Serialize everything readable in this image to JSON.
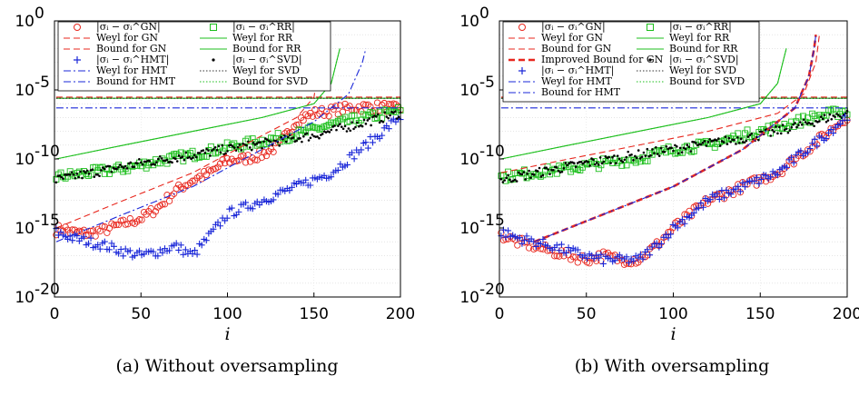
{
  "figure": {
    "captions": [
      "(a) Without oversampling",
      "(b) With oversampling"
    ]
  },
  "chart_data": [
    {
      "type": "scatter",
      "yscale": "log",
      "xlabel": "i",
      "xlim": [
        0,
        200
      ],
      "ylim": [
        1e-20,
        1
      ],
      "xticks": [
        "0",
        "50",
        "100",
        "150",
        "200"
      ],
      "yticks": [
        {
          "m": "10",
          "e": "0"
        },
        {
          "m": "10",
          "e": "-5"
        },
        {
          "m": "10",
          "e": "-10"
        },
        {
          "m": "10",
          "e": "-15"
        },
        {
          "m": "10",
          "e": "-20"
        }
      ],
      "grid": true,
      "legend_position": "top",
      "legend": [
        "|σᵢ − σᵢ^GN|",
        "|σᵢ − σᵢ^RR|",
        "Weyl for GN",
        "Weyl for RR",
        "Bound for GN",
        "Bound for RR",
        "|σᵢ − σᵢ^HMT|",
        "|σᵢ − σᵢ^SVD|",
        "Weyl for HMT",
        "Weyl for SVD",
        "Bound for HMT",
        "Bound for SVD"
      ],
      "series": [
        {
          "name": "|σᵢ − σᵢ^GN|",
          "kind": "markers",
          "marker": "circle",
          "color": "#e8271e",
          "points": [
            [
              1,
              7e-16
            ],
            [
              5,
              1e-15
            ],
            [
              10,
              5e-16
            ],
            [
              20,
              4e-16
            ],
            [
              30,
              8e-16
            ],
            [
              40,
              2e-15
            ],
            [
              50,
              5e-15
            ],
            [
              60,
              3e-14
            ],
            [
              70,
              5e-13
            ],
            [
              80,
              3e-12
            ],
            [
              90,
              1e-11
            ],
            [
              100,
              8e-11
            ],
            [
              110,
              1e-10
            ],
            [
              120,
              2e-10
            ],
            [
              130,
              1e-09
            ],
            [
              140,
              6e-08
            ],
            [
              150,
              2e-07
            ],
            [
              160,
              3e-07
            ],
            [
              170,
              5e-07
            ],
            [
              180,
              6e-07
            ],
            [
              190,
              6e-07
            ],
            [
              199,
              4e-07
            ]
          ]
        },
        {
          "name": "|σᵢ − σᵢ^RR|",
          "kind": "markers",
          "marker": "square",
          "color": "#1dbf1d",
          "points": [
            [
              1,
              5e-12
            ],
            [
              20,
              1e-11
            ],
            [
              40,
              2e-11
            ],
            [
              60,
              7e-11
            ],
            [
              80,
              2e-10
            ],
            [
              100,
              7e-10
            ],
            [
              120,
              2e-09
            ],
            [
              140,
              6e-09
            ],
            [
              160,
              3e-08
            ],
            [
              180,
              1e-07
            ],
            [
              199,
              3e-07
            ]
          ]
        },
        {
          "name": "Weyl for GN",
          "kind": "line",
          "dash": "dashed",
          "color": "#e8271e",
          "points": [
            [
              1,
              3e-06
            ],
            [
              200,
              3e-06
            ]
          ]
        },
        {
          "name": "Weyl for RR",
          "kind": "line",
          "dash": "solid",
          "color": "#1dbf1d",
          "points": [
            [
              1,
              2.5e-06
            ],
            [
              200,
              2.5e-06
            ]
          ]
        },
        {
          "name": "Bound for GN",
          "kind": "line",
          "dash": "dashed",
          "color": "#e8271e",
          "points": [
            [
              1,
              1e-15
            ],
            [
              40,
              1e-13
            ],
            [
              80,
              1e-11
            ],
            [
              120,
              5e-09
            ],
            [
              140,
              1e-07
            ],
            [
              150,
              3e-06
            ],
            [
              153,
              0.001
            ],
            [
              155,
              0.1
            ]
          ]
        },
        {
          "name": "Bound for RR",
          "kind": "line",
          "dash": "solid",
          "color": "#1dbf1d",
          "points": [
            [
              1,
              1e-10
            ],
            [
              40,
              1e-09
            ],
            [
              80,
              1e-08
            ],
            [
              120,
              1e-07
            ],
            [
              150,
              1e-06
            ],
            [
              160,
              3e-05
            ],
            [
              163,
              0.001
            ],
            [
              165,
              0.01
            ]
          ]
        },
        {
          "name": "|σᵢ − σᵢ^HMT|",
          "kind": "markers",
          "marker": "plus",
          "color": "#1a27d8",
          "points": [
            [
              1,
              5e-16
            ],
            [
              10,
              2e-16
            ],
            [
              20,
              1e-16
            ],
            [
              30,
              5e-17
            ],
            [
              40,
              2e-17
            ],
            [
              50,
              1e-17
            ],
            [
              60,
              2e-17
            ],
            [
              70,
              5e-17
            ],
            [
              80,
              1e-17
            ],
            [
              90,
              3e-16
            ],
            [
              100,
              1e-14
            ],
            [
              120,
              1e-13
            ],
            [
              140,
              1e-12
            ],
            [
              160,
              1e-11
            ],
            [
              180,
              1e-09
            ],
            [
              190,
              1e-08
            ],
            [
              199,
              1e-07
            ]
          ]
        },
        {
          "name": "|σᵢ − σᵢ^SVD|",
          "kind": "markers",
          "marker": "dot",
          "color": "#000000",
          "points": [
            [
              1,
              3e-12
            ],
            [
              50,
              5e-11
            ],
            [
              100,
              5e-10
            ],
            [
              150,
              5e-09
            ],
            [
              199,
              2e-07
            ]
          ]
        },
        {
          "name": "Weyl for HMT",
          "kind": "line",
          "dash": "dashdot",
          "color": "#1a27d8",
          "points": [
            [
              1,
              5e-07
            ],
            [
              200,
              5e-07
            ]
          ]
        },
        {
          "name": "Weyl for SVD",
          "kind": "line",
          "dash": "dotted",
          "color": "#333333",
          "points": [
            [
              1,
              2.5e-06
            ],
            [
              200,
              2.5e-06
            ]
          ]
        },
        {
          "name": "Bound for HMT",
          "kind": "line",
          "dash": "dashdot",
          "color": "#1a27d8",
          "points": [
            [
              1,
              1e-16
            ],
            [
              40,
              1e-14
            ],
            [
              80,
              1e-12
            ],
            [
              120,
              5e-10
            ],
            [
              150,
              5e-08
            ],
            [
              170,
              5e-06
            ],
            [
              178,
              0.001
            ],
            [
              180,
              0.01
            ]
          ]
        },
        {
          "name": "Bound for SVD",
          "kind": "line",
          "dash": "dotted",
          "color": "#1dbf1d",
          "points": [
            [
              1,
              1e-10
            ],
            [
              40,
              1e-09
            ],
            [
              80,
              1e-08
            ],
            [
              120,
              1e-07
            ],
            [
              150,
              1e-06
            ],
            [
              160,
              3e-05
            ],
            [
              163,
              0.001
            ],
            [
              165,
              0.01
            ]
          ]
        }
      ]
    },
    {
      "type": "scatter",
      "yscale": "log",
      "xlabel": "i",
      "xlim": [
        0,
        200
      ],
      "ylim": [
        1e-20,
        1
      ],
      "xticks": [
        "0",
        "50",
        "100",
        "150",
        "200"
      ],
      "yticks": [
        {
          "m": "10",
          "e": "0"
        },
        {
          "m": "10",
          "e": "-5"
        },
        {
          "m": "10",
          "e": "-10"
        },
        {
          "m": "10",
          "e": "-15"
        },
        {
          "m": "10",
          "e": "-20"
        }
      ],
      "grid": true,
      "legend_position": "top",
      "legend": [
        "|σᵢ − σᵢ^GN|",
        "|σᵢ − σᵢ^RR|",
        "Weyl for GN",
        "Weyl for RR",
        "Bound for GN",
        "Bound for RR",
        "Improved Bound for GN",
        "|σᵢ − σᵢ^SVD|",
        "|σᵢ − σᵢ^HMT|",
        "Weyl for SVD",
        "Weyl for HMT",
        "Bound for SVD",
        "Bound for HMT",
        ""
      ],
      "series": [
        {
          "name": "|σᵢ − σᵢ^GN|",
          "kind": "markers",
          "marker": "circle",
          "color": "#e8271e",
          "points": [
            [
              1,
              3e-16
            ],
            [
              10,
              1e-16
            ],
            [
              20,
              5e-17
            ],
            [
              30,
              2e-17
            ],
            [
              40,
              1e-17
            ],
            [
              50,
              5e-18
            ],
            [
              60,
              1e-17
            ],
            [
              70,
              5e-18
            ],
            [
              80,
              5e-18
            ],
            [
              90,
              5e-17
            ],
            [
              100,
              1e-15
            ],
            [
              120,
              1e-13
            ],
            [
              140,
              1e-12
            ],
            [
              160,
              1e-11
            ],
            [
              170,
              1e-10
            ],
            [
              180,
              1e-09
            ],
            [
              190,
              1e-08
            ],
            [
              199,
              1e-07
            ]
          ]
        },
        {
          "name": "|σᵢ − σᵢ^RR|",
          "kind": "markers",
          "marker": "square",
          "color": "#1dbf1d",
          "points": [
            [
              1,
              5e-12
            ],
            [
              20,
              1e-11
            ],
            [
              40,
              2e-11
            ],
            [
              60,
              5e-11
            ],
            [
              80,
              1e-10
            ],
            [
              100,
              5e-10
            ],
            [
              120,
              1e-09
            ],
            [
              140,
              5e-09
            ],
            [
              160,
              2e-08
            ],
            [
              180,
              1e-07
            ],
            [
              199,
              3e-07
            ]
          ]
        },
        {
          "name": "Weyl for GN",
          "kind": "line",
          "dash": "dashed",
          "color": "#e8271e",
          "points": [
            [
              1,
              3e-06
            ],
            [
              200,
              3e-06
            ]
          ]
        },
        {
          "name": "Weyl for RR",
          "kind": "line",
          "dash": "solid",
          "color": "#1dbf1d",
          "points": [
            [
              1,
              2.5e-06
            ],
            [
              200,
              2.5e-06
            ]
          ]
        },
        {
          "name": "Bound for GN",
          "kind": "line",
          "dash": "dashed",
          "color": "#e8271e",
          "points": [
            [
              1,
              1e-11
            ],
            [
              40,
              1e-10
            ],
            [
              80,
              1e-09
            ],
            [
              120,
              1e-08
            ],
            [
              160,
              2e-07
            ],
            [
              175,
              5e-06
            ],
            [
              182,
              0.001
            ],
            [
              184,
              0.1
            ]
          ]
        },
        {
          "name": "Bound for RR",
          "kind": "line",
          "dash": "solid",
          "color": "#1dbf1d",
          "points": [
            [
              1,
              1e-10
            ],
            [
              40,
              1e-09
            ],
            [
              80,
              1e-08
            ],
            [
              120,
              1e-07
            ],
            [
              150,
              1e-06
            ],
            [
              160,
              3e-05
            ],
            [
              163,
              0.001
            ],
            [
              165,
              0.01
            ]
          ]
        },
        {
          "name": "Improved Bound for GN",
          "kind": "line",
          "dash": "bold-dashed",
          "color": "#e8271e",
          "points": [
            [
              20,
              1e-16
            ],
            [
              60,
              1e-14
            ],
            [
              100,
              1e-12
            ],
            [
              140,
              5e-10
            ],
            [
              170,
              5e-07
            ],
            [
              178,
              0.0001
            ],
            [
              181,
              0.01
            ],
            [
              182,
              0.1
            ]
          ]
        },
        {
          "name": "|σᵢ − σᵢ^SVD|",
          "kind": "markers",
          "marker": "dot",
          "color": "#000000",
          "points": [
            [
              1,
              3e-12
            ],
            [
              50,
              5e-11
            ],
            [
              100,
              5e-10
            ],
            [
              150,
              5e-09
            ],
            [
              199,
              2e-07
            ]
          ]
        },
        {
          "name": "|σᵢ − σᵢ^HMT|",
          "kind": "markers",
          "marker": "plus",
          "color": "#1a27d8",
          "points": [
            [
              1,
              5e-16
            ],
            [
              10,
              2e-16
            ],
            [
              20,
              1e-16
            ],
            [
              30,
              5e-17
            ],
            [
              40,
              2e-17
            ],
            [
              50,
              1e-17
            ],
            [
              60,
              5e-18
            ],
            [
              70,
              5e-18
            ],
            [
              80,
              5e-18
            ],
            [
              90,
              5e-17
            ],
            [
              100,
              1e-15
            ],
            [
              120,
              1e-13
            ],
            [
              140,
              1e-12
            ],
            [
              160,
              1e-11
            ],
            [
              180,
              1e-09
            ],
            [
              190,
              1e-08
            ],
            [
              199,
              1e-07
            ]
          ]
        },
        {
          "name": "Weyl for SVD",
          "kind": "line",
          "dash": "dotted",
          "color": "#333333",
          "points": [
            [
              1,
              2.5e-06
            ],
            [
              200,
              2.5e-06
            ]
          ]
        },
        {
          "name": "Weyl for HMT",
          "kind": "line",
          "dash": "dashdot",
          "color": "#1a27d8",
          "points": [
            [
              1,
              5e-07
            ],
            [
              200,
              5e-07
            ]
          ]
        },
        {
          "name": "Bound for SVD",
          "kind": "line",
          "dash": "dotted",
          "color": "#1dbf1d",
          "points": [
            [
              1,
              1e-10
            ],
            [
              40,
              1e-09
            ],
            [
              80,
              1e-08
            ],
            [
              120,
              1e-07
            ],
            [
              150,
              1e-06
            ],
            [
              160,
              3e-05
            ],
            [
              163,
              0.001
            ],
            [
              165,
              0.01
            ]
          ]
        },
        {
          "name": "Bound for HMT",
          "kind": "line",
          "dash": "dashdot",
          "color": "#1a27d8",
          "points": [
            [
              20,
              1e-16
            ],
            [
              60,
              1e-14
            ],
            [
              100,
              1e-12
            ],
            [
              140,
              5e-10
            ],
            [
              170,
              5e-07
            ],
            [
              178,
              0.0001
            ],
            [
              181,
              0.01
            ],
            [
              182,
              0.1
            ]
          ]
        }
      ]
    }
  ]
}
